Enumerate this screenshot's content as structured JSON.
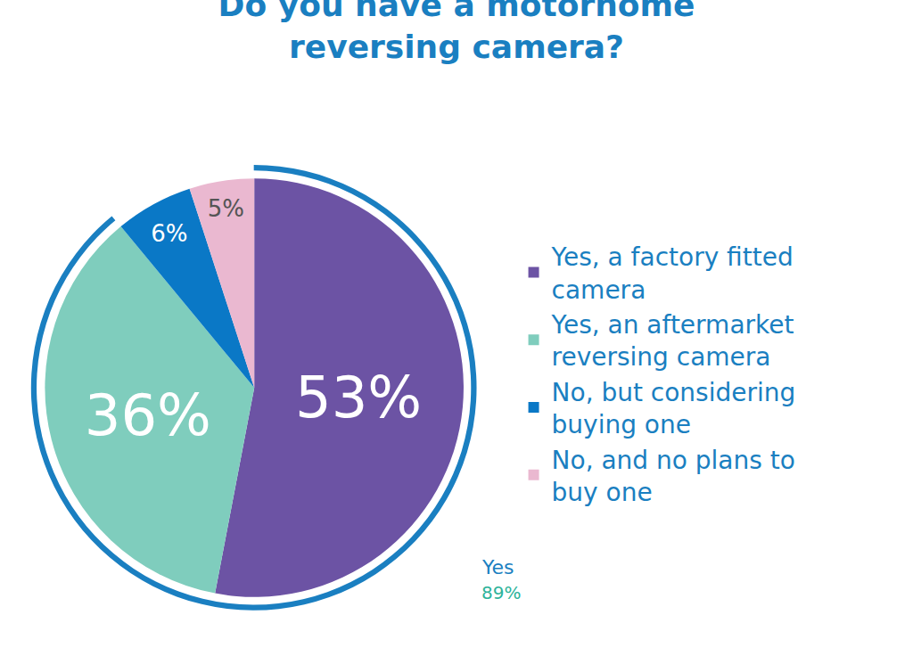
{
  "chart_data": {
    "type": "pie",
    "title": "Do you have a motorhome reversing camera?",
    "categories": [
      "Yes, a factory fitted camera",
      "Yes, an aftermarket reversing camera",
      "No, but considering buying one",
      "No, and no plans to buy one"
    ],
    "values": [
      53,
      36,
      6,
      5
    ],
    "value_labels": [
      "53%",
      "36%",
      "6%",
      "5%"
    ],
    "colors": [
      "#6c53a4",
      "#7fcdbd",
      "#0a78c6",
      "#eab8d0"
    ],
    "data_labels": true,
    "legend": "right",
    "annotations": [
      {
        "text": "Yes",
        "value": 89,
        "value_label": "89%"
      }
    ]
  }
}
